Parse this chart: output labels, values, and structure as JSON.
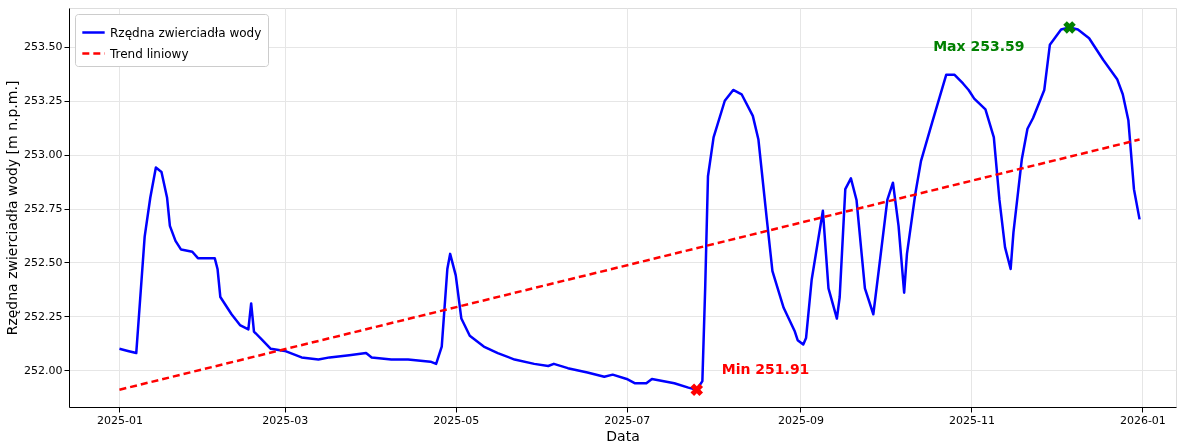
{
  "chart_data": {
    "type": "line",
    "xlabel": "Data",
    "ylabel": "Rzędna zwierciadła wody [m n.p.m.]",
    "x": [
      "2025-01-01",
      "2025-01-04",
      "2025-01-07",
      "2025-01-08",
      "2025-01-10",
      "2025-01-12",
      "2025-01-14",
      "2025-01-16",
      "2025-01-18",
      "2025-01-19",
      "2025-01-21",
      "2025-01-23",
      "2025-01-27",
      "2025-01-29",
      "2025-02-01",
      "2025-02-04",
      "2025-02-05",
      "2025-02-06",
      "2025-02-10",
      "2025-02-13",
      "2025-02-16",
      "2025-02-17",
      "2025-02-18",
      "2025-02-21",
      "2025-02-24",
      "2025-03-01",
      "2025-03-07",
      "2025-03-13",
      "2025-03-17",
      "2025-03-24",
      "2025-03-30",
      "2025-04-01",
      "2025-04-08",
      "2025-04-14",
      "2025-04-22",
      "2025-04-24",
      "2025-04-26",
      "2025-04-28",
      "2025-04-29",
      "2025-05-01",
      "2025-05-03",
      "2025-05-06",
      "2025-05-11",
      "2025-05-16",
      "2025-05-22",
      "2025-05-29",
      "2025-06-03",
      "2025-06-05",
      "2025-06-10",
      "2025-06-17",
      "2025-06-23",
      "2025-06-26",
      "2025-07-01",
      "2025-07-04",
      "2025-07-08",
      "2025-07-10",
      "2025-07-18",
      "2025-07-23",
      "2025-07-26",
      "2025-07-28",
      "2025-07-29",
      "2025-07-30",
      "2025-08-01",
      "2025-08-05",
      "2025-08-08",
      "2025-08-11",
      "2025-08-15",
      "2025-08-17",
      "2025-08-20",
      "2025-08-22",
      "2025-08-26",
      "2025-08-30",
      "2025-08-31",
      "2025-09-02",
      "2025-09-03",
      "2025-09-05",
      "2025-09-09",
      "2025-09-11",
      "2025-09-14",
      "2025-09-15",
      "2025-09-17",
      "2025-09-19",
      "2025-09-21",
      "2025-09-24",
      "2025-09-27",
      "2025-09-29",
      "2025-10-02",
      "2025-10-04",
      "2025-10-06",
      "2025-10-08",
      "2025-10-09",
      "2025-10-12",
      "2025-10-14",
      "2025-10-18",
      "2025-10-23",
      "2025-10-26",
      "2025-10-29",
      "2025-10-31",
      "2025-11-02",
      "2025-11-06",
      "2025-11-09",
      "2025-11-11",
      "2025-11-13",
      "2025-11-15",
      "2025-11-16",
      "2025-11-19",
      "2025-11-21",
      "2025-11-23",
      "2025-11-27",
      "2025-11-29",
      "2025-12-03",
      "2025-12-06",
      "2025-12-09",
      "2025-12-13",
      "2025-12-18",
      "2025-12-23",
      "2025-12-25",
      "2025-12-27",
      "2025-12-29",
      "2025-12-31"
    ],
    "series": [
      {
        "name": "Rzędna zwierciadła wody",
        "color": "#0000ff",
        "line_style": "solid",
        "values": [
          252.1,
          252.09,
          252.08,
          252.26,
          252.62,
          252.8,
          252.94,
          252.92,
          252.8,
          252.67,
          252.6,
          252.56,
          252.55,
          252.52,
          252.52,
          252.52,
          252.47,
          252.34,
          252.26,
          252.21,
          252.19,
          252.31,
          252.18,
          252.14,
          252.1,
          252.09,
          252.06,
          252.05,
          252.06,
          252.07,
          252.08,
          252.06,
          252.05,
          252.05,
          252.04,
          252.03,
          252.11,
          252.47,
          252.54,
          252.44,
          252.24,
          252.16,
          252.11,
          252.08,
          252.05,
          252.03,
          252.02,
          252.03,
          252.01,
          251.99,
          251.97,
          251.98,
          251.96,
          251.94,
          251.94,
          251.96,
          251.94,
          251.92,
          251.91,
          251.95,
          252.38,
          252.9,
          253.08,
          253.25,
          253.3,
          253.28,
          253.18,
          253.07,
          252.7,
          252.46,
          252.29,
          252.18,
          252.14,
          252.12,
          252.15,
          252.42,
          252.74,
          252.38,
          252.24,
          252.34,
          252.84,
          252.89,
          252.79,
          252.38,
          252.26,
          252.47,
          252.79,
          252.87,
          252.67,
          252.36,
          252.54,
          252.82,
          252.97,
          253.15,
          253.37,
          253.37,
          253.33,
          253.3,
          253.26,
          253.21,
          253.08,
          252.79,
          252.57,
          252.47,
          252.64,
          252.98,
          253.12,
          253.17,
          253.3,
          253.51,
          253.58,
          253.59,
          253.58,
          253.54,
          253.44,
          253.35,
          253.28,
          253.16,
          252.84,
          252.7
        ]
      },
      {
        "name": "Trend liniowy",
        "color": "#ff0000",
        "line_style": "dashed",
        "x": [
          "2025-01-01",
          "2025-12-31"
        ],
        "values": [
          251.91,
          253.07
        ]
      },
      {
        "type": "scatter",
        "color": "#ff0000",
        "marker": "cross",
        "x": [
          "2025-07-26"
        ],
        "values": [
          251.91
        ]
      },
      {
        "type": "scatter",
        "color": "#008000",
        "marker": "cross",
        "x": [
          "2025-12-06"
        ],
        "values": [
          253.59
        ]
      }
    ],
    "annotations": [
      "Min 251.91",
      "Max 253.59"
    ],
    "xlim": [
      "2024-12-14",
      "2026-01-13"
    ],
    "xticks": [
      {
        "value": "2025-01-01",
        "label": "2025-01"
      },
      {
        "value": "2025-03-01",
        "label": "2025-03"
      },
      {
        "value": "2025-05-01",
        "label": "2025-05"
      },
      {
        "value": "2025-07-01",
        "label": "2025-07"
      },
      {
        "value": "2025-09-01",
        "label": "2025-09"
      },
      {
        "value": "2025-11-01",
        "label": "2025-11"
      },
      {
        "value": "2026-01-01",
        "label": "2026-01"
      }
    ],
    "ylim": [
      251.83,
      253.68
    ],
    "yticks": [
      {
        "value": 252.0,
        "label": "252.00"
      },
      {
        "value": 252.25,
        "label": "252.25"
      },
      {
        "value": 252.5,
        "label": "252.50"
      },
      {
        "value": 252.75,
        "label": "252.75"
      },
      {
        "value": 253.0,
        "label": "253.00"
      },
      {
        "value": 253.25,
        "label": "253.25"
      },
      {
        "value": 253.5,
        "label": "253.50"
      }
    ],
    "grid": true,
    "legend": "top left"
  }
}
